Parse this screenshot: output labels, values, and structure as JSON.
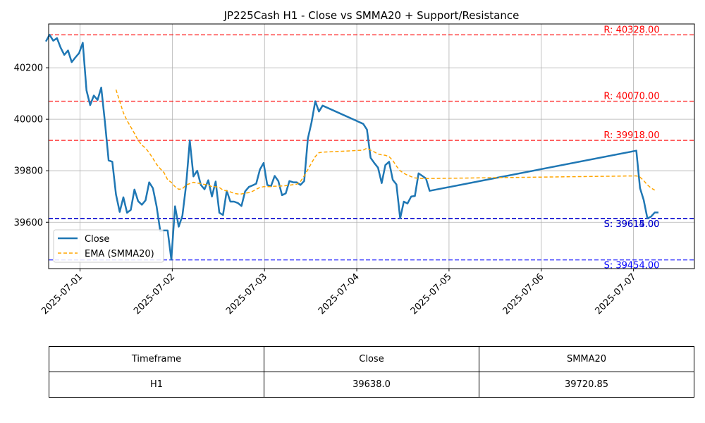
{
  "chart_data": {
    "type": "line",
    "title": "JP225Cash H1 - Close vs SMMA20 + Support/Resistance",
    "xlabel": "",
    "ylabel": "",
    "ylim": [
      39420,
      40370
    ],
    "y_ticks": [
      39600,
      39800,
      40000,
      40200
    ],
    "y_tick_labels": [
      "39600",
      "39800",
      "40000",
      "40200"
    ],
    "x_ticks": [
      {
        "label": "2025-07-01",
        "t": 1.0
      },
      {
        "label": "2025-07-02",
        "t": 2.0
      },
      {
        "label": "2025-07-03",
        "t": 3.0
      },
      {
        "label": "2025-07-04",
        "t": 4.0
      },
      {
        "label": "2025-07-05",
        "t": 5.0
      },
      {
        "label": "2025-07-06",
        "t": 6.0
      },
      {
        "label": "2025-07-07",
        "t": 7.0
      }
    ],
    "xlim": [
      0.66,
      7.66
    ],
    "grid": true,
    "legend_position": "lower-left",
    "series": [
      {
        "name": "Close",
        "color": "#1f77b4",
        "style": "solid",
        "points": [
          [
            0.63,
            40302
          ],
          [
            0.67,
            40328
          ],
          [
            0.71,
            40305
          ],
          [
            0.75,
            40315
          ],
          [
            0.79,
            40278
          ],
          [
            0.83,
            40250
          ],
          [
            0.87,
            40267
          ],
          [
            0.91,
            40222
          ],
          [
            0.95,
            40240
          ],
          [
            0.99,
            40257
          ],
          [
            1.03,
            40297
          ],
          [
            1.07,
            40112
          ],
          [
            1.11,
            40055
          ],
          [
            1.15,
            40092
          ],
          [
            1.19,
            40075
          ],
          [
            1.23,
            40123
          ],
          [
            1.27,
            39990
          ],
          [
            1.31,
            39840
          ],
          [
            1.35,
            39835
          ],
          [
            1.39,
            39708
          ],
          [
            1.43,
            39640
          ],
          [
            1.47,
            39697
          ],
          [
            1.51,
            39637
          ],
          [
            1.55,
            39648
          ],
          [
            1.59,
            39727
          ],
          [
            1.63,
            39682
          ],
          [
            1.67,
            39668
          ],
          [
            1.71,
            39685
          ],
          [
            1.75,
            39755
          ],
          [
            1.79,
            39732
          ],
          [
            1.83,
            39662
          ],
          [
            1.87,
            39566
          ],
          [
            1.91,
            39568
          ],
          [
            1.95,
            39568
          ],
          [
            1.99,
            39455
          ],
          [
            2.03,
            39662
          ],
          [
            2.07,
            39583
          ],
          [
            2.11,
            39625
          ],
          [
            2.15,
            39745
          ],
          [
            2.19,
            39918
          ],
          [
            2.23,
            39778
          ],
          [
            2.27,
            39800
          ],
          [
            2.31,
            39745
          ],
          [
            2.35,
            39728
          ],
          [
            2.39,
            39763
          ],
          [
            2.43,
            39700
          ],
          [
            2.47,
            39758
          ],
          [
            2.51,
            39637
          ],
          [
            2.55,
            39628
          ],
          [
            2.59,
            39722
          ],
          [
            2.63,
            39680
          ],
          [
            2.67,
            39680
          ],
          [
            2.71,
            39675
          ],
          [
            2.75,
            39663
          ],
          [
            2.79,
            39720
          ],
          [
            2.83,
            39737
          ],
          [
            2.87,
            39743
          ],
          [
            2.91,
            39750
          ],
          [
            2.95,
            39805
          ],
          [
            2.99,
            39830
          ],
          [
            3.03,
            39745
          ],
          [
            3.07,
            39740
          ],
          [
            3.11,
            39780
          ],
          [
            3.15,
            39760
          ],
          [
            3.19,
            39705
          ],
          [
            3.23,
            39712
          ],
          [
            3.27,
            39760
          ],
          [
            3.31,
            39755
          ],
          [
            3.35,
            39755
          ],
          [
            3.39,
            39745
          ],
          [
            3.43,
            39760
          ],
          [
            3.47,
            39925
          ],
          [
            3.51,
            39988
          ],
          [
            3.55,
            40070
          ],
          [
            3.59,
            40030
          ],
          [
            3.63,
            40053
          ],
          [
            4.07,
            39982
          ],
          [
            4.11,
            39960
          ],
          [
            4.15,
            39850
          ],
          [
            4.19,
            39830
          ],
          [
            4.23,
            39812
          ],
          [
            4.27,
            39752
          ],
          [
            4.31,
            39822
          ],
          [
            4.35,
            39835
          ],
          [
            4.39,
            39765
          ],
          [
            4.43,
            39747
          ],
          [
            4.47,
            39615
          ],
          [
            4.51,
            39680
          ],
          [
            4.55,
            39673
          ],
          [
            4.59,
            39700
          ],
          [
            4.63,
            39702
          ],
          [
            4.67,
            39790
          ],
          [
            4.71,
            39780
          ],
          [
            4.75,
            39770
          ],
          [
            4.79,
            39722
          ],
          [
            7.03,
            39878
          ],
          [
            7.07,
            39733
          ],
          [
            7.11,
            39687
          ],
          [
            7.15,
            39615
          ],
          [
            7.19,
            39622
          ],
          [
            7.23,
            39638
          ],
          [
            7.27,
            39638
          ]
        ]
      },
      {
        "name": "EMA (SMMA20)",
        "color": "#ffa500",
        "style": "dashed",
        "points": [
          [
            1.39,
            40115
          ],
          [
            1.43,
            40070
          ],
          [
            1.47,
            40025
          ],
          [
            1.51,
            39995
          ],
          [
            1.55,
            39970
          ],
          [
            1.59,
            39945
          ],
          [
            1.63,
            39918
          ],
          [
            1.67,
            39900
          ],
          [
            1.71,
            39888
          ],
          [
            1.75,
            39870
          ],
          [
            1.79,
            39848
          ],
          [
            1.83,
            39825
          ],
          [
            1.87,
            39808
          ],
          [
            1.91,
            39793
          ],
          [
            1.95,
            39765
          ],
          [
            1.99,
            39755
          ],
          [
            2.03,
            39738
          ],
          [
            2.07,
            39728
          ],
          [
            2.11,
            39730
          ],
          [
            2.15,
            39745
          ],
          [
            2.19,
            39750
          ],
          [
            2.23,
            39755
          ],
          [
            2.27,
            39752
          ],
          [
            2.31,
            39750
          ],
          [
            2.35,
            39747
          ],
          [
            2.39,
            39745
          ],
          [
            2.43,
            39738
          ],
          [
            2.47,
            39738
          ],
          [
            2.51,
            39735
          ],
          [
            2.55,
            39725
          ],
          [
            2.59,
            39722
          ],
          [
            2.63,
            39718
          ],
          [
            2.67,
            39712
          ],
          [
            2.71,
            39710
          ],
          [
            2.75,
            39710
          ],
          [
            2.79,
            39713
          ],
          [
            2.83,
            39715
          ],
          [
            2.87,
            39720
          ],
          [
            2.91,
            39728
          ],
          [
            2.95,
            39735
          ],
          [
            2.99,
            39738
          ],
          [
            3.03,
            39738
          ],
          [
            3.07,
            39738
          ],
          [
            3.11,
            39740
          ],
          [
            3.15,
            39740
          ],
          [
            3.19,
            39741
          ],
          [
            3.23,
            39742
          ],
          [
            3.27,
            39744
          ],
          [
            3.31,
            39746
          ],
          [
            3.35,
            39748
          ],
          [
            3.39,
            39758
          ],
          [
            3.43,
            39780
          ],
          [
            3.47,
            39805
          ],
          [
            3.51,
            39830
          ],
          [
            3.55,
            39855
          ],
          [
            3.59,
            39870
          ],
          [
            3.63,
            39872
          ],
          [
            4.07,
            39880
          ],
          [
            4.11,
            39888
          ],
          [
            4.15,
            39880
          ],
          [
            4.19,
            39873
          ],
          [
            4.23,
            39865
          ],
          [
            4.27,
            39862
          ],
          [
            4.31,
            39860
          ],
          [
            4.35,
            39855
          ],
          [
            4.39,
            39840
          ],
          [
            4.43,
            39818
          ],
          [
            4.47,
            39800
          ],
          [
            4.51,
            39790
          ],
          [
            4.55,
            39783
          ],
          [
            4.59,
            39777
          ],
          [
            4.63,
            39772
          ],
          [
            4.67,
            39771
          ],
          [
            4.71,
            39770
          ],
          [
            4.75,
            39770
          ],
          [
            4.79,
            39770
          ],
          [
            7.03,
            39780
          ],
          [
            7.07,
            39775
          ],
          [
            7.11,
            39762
          ],
          [
            7.15,
            39745
          ],
          [
            7.19,
            39733
          ],
          [
            7.23,
            39725
          ]
        ]
      }
    ],
    "levels": [
      {
        "kind": "resistance",
        "value": 40328,
        "label": "R: 40328.00",
        "color": "#ff0000"
      },
      {
        "kind": "resistance",
        "value": 40070,
        "label": "R: 40070.00",
        "color": "#ff0000"
      },
      {
        "kind": "resistance",
        "value": 39918,
        "label": "R: 39918.00",
        "color": "#ff0000"
      },
      {
        "kind": "support",
        "value": 39615,
        "label": "S: 39615.00",
        "color": "#0000cc"
      },
      {
        "kind": "support",
        "value": 39614,
        "label": "S: 39614.00",
        "color": "#0000cc"
      },
      {
        "kind": "support",
        "value": 39454,
        "label": "S: 39454.00",
        "color": "#0000ff"
      }
    ],
    "level_label_x": 6.98
  },
  "table": {
    "headers": [
      "Timeframe",
      "Close",
      "SMMA20"
    ],
    "rows": [
      [
        "H1",
        "39638.0",
        "39720.85"
      ]
    ]
  }
}
